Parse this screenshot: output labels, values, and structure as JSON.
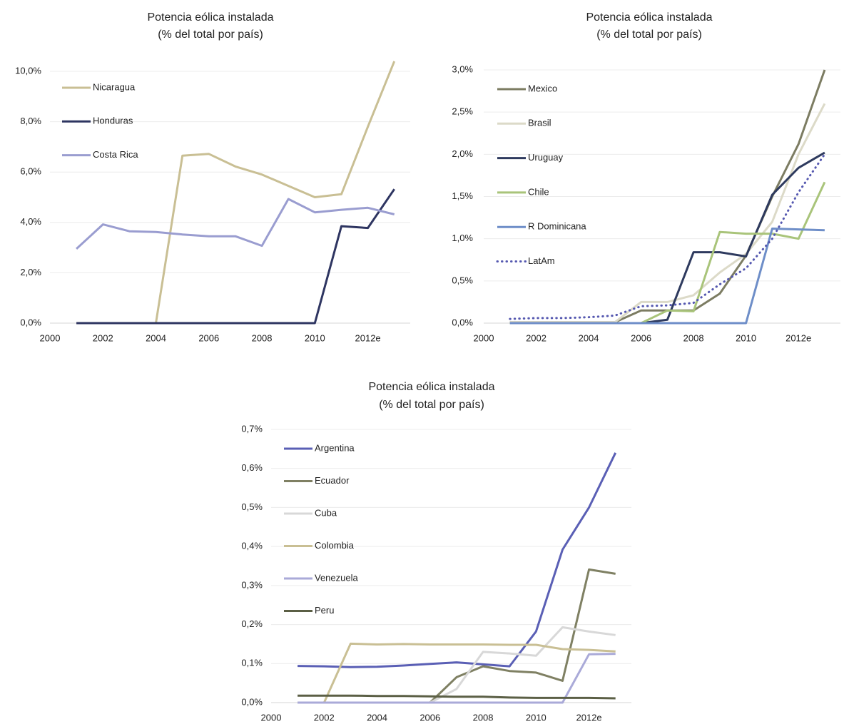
{
  "chart_data": [
    {
      "type": "line",
      "title": "Potencia eólica instalada",
      "subtitle": "(% del total por país)",
      "x": [
        2001,
        2002,
        2003,
        2004,
        2005,
        2006,
        2007,
        2008,
        2009,
        2010,
        2011,
        2012,
        2013
      ],
      "xticks": [
        {
          "x": 2000,
          "label": "2000"
        },
        {
          "x": 2002,
          "label": "2002"
        },
        {
          "x": 2004,
          "label": "2004"
        },
        {
          "x": 2006,
          "label": "2006"
        },
        {
          "x": 2008,
          "label": "2008"
        },
        {
          "x": 2010,
          "label": "2010"
        },
        {
          "x": 2012,
          "label": "2012e"
        }
      ],
      "xlim": [
        2000,
        2013.6
      ],
      "ylim": [
        0,
        10
      ],
      "yticks": [
        {
          "v": 0,
          "label": "0,0%"
        },
        {
          "v": 2,
          "label": "2,0%"
        },
        {
          "v": 4,
          "label": "4,0%"
        },
        {
          "v": 6,
          "label": "6,0%"
        },
        {
          "v": 8,
          "label": "8,0%"
        },
        {
          "v": 10,
          "label": "10,0%"
        }
      ],
      "grid": true,
      "legend_position": "top-left",
      "series": [
        {
          "name": "Nicaragua",
          "color": "#c9bf94",
          "dash": false,
          "values": [
            0,
            0,
            0,
            0,
            6.65,
            6.72,
            6.22,
            5.9,
            5.45,
            5.0,
            5.12,
            7.8,
            10.4
          ]
        },
        {
          "name": "Honduras",
          "color": "#2e3561",
          "dash": false,
          "values": [
            0,
            0,
            0,
            0,
            0,
            0,
            0,
            0,
            0,
            0,
            3.85,
            3.78,
            5.32
          ]
        },
        {
          "name": "Costa Rica",
          "color": "#9a9dd0",
          "dash": false,
          "values": [
            2.95,
            3.92,
            3.65,
            3.62,
            3.52,
            3.45,
            3.45,
            3.07,
            4.93,
            4.4,
            4.5,
            4.58,
            4.32
          ]
        }
      ]
    },
    {
      "type": "line",
      "title": "Potencia eólica instalada",
      "subtitle": "(% del total por país)",
      "x": [
        2001,
        2002,
        2003,
        2004,
        2005,
        2006,
        2007,
        2008,
        2009,
        2010,
        2011,
        2012,
        2013
      ],
      "xticks": [
        {
          "x": 2000,
          "label": "2000"
        },
        {
          "x": 2002,
          "label": "2002"
        },
        {
          "x": 2004,
          "label": "2004"
        },
        {
          "x": 2006,
          "label": "2006"
        },
        {
          "x": 2008,
          "label": "2008"
        },
        {
          "x": 2010,
          "label": "2010"
        },
        {
          "x": 2012,
          "label": "2012e"
        }
      ],
      "xlim": [
        2000,
        2013.6
      ],
      "ylim": [
        0,
        3
      ],
      "yticks": [
        {
          "v": 0,
          "label": "0,0%"
        },
        {
          "v": 0.5,
          "label": "0,5%"
        },
        {
          "v": 1,
          "label": "1,0%"
        },
        {
          "v": 1.5,
          "label": "1,5%"
        },
        {
          "v": 2,
          "label": "2,0%"
        },
        {
          "v": 2.5,
          "label": "2,5%"
        },
        {
          "v": 3,
          "label": "3,0%"
        }
      ],
      "grid": true,
      "legend_position": "top-left",
      "series": [
        {
          "name": "Mexico",
          "color": "#7c7c62",
          "dash": false,
          "values": [
            0.01,
            0.01,
            0.01,
            0.01,
            0.01,
            0.15,
            0.15,
            0.15,
            0.35,
            0.8,
            1.5,
            2.12,
            3.0
          ]
        },
        {
          "name": "Brasil",
          "color": "#dcdac8",
          "dash": false,
          "values": [
            0.01,
            0.01,
            0.01,
            0.01,
            0.01,
            0.25,
            0.25,
            0.33,
            0.6,
            0.82,
            1.2,
            2.0,
            2.6
          ]
        },
        {
          "name": "Uruguay",
          "color": "#2e3a5e",
          "dash": false,
          "values": [
            0,
            0,
            0,
            0,
            0,
            0,
            0.04,
            0.84,
            0.84,
            0.79,
            1.52,
            1.84,
            2.02
          ]
        },
        {
          "name": "Chile",
          "color": "#a9c47a",
          "dash": false,
          "values": [
            0,
            0,
            0,
            0,
            0,
            0,
            0.15,
            0.14,
            1.08,
            1.06,
            1.06,
            1.0,
            1.67
          ]
        },
        {
          "name": "R Dominicana",
          "color": "#6e8ec8",
          "dash": false,
          "values": [
            0,
            0,
            0,
            0,
            0,
            0,
            0,
            0,
            0,
            0,
            1.12,
            1.11,
            1.1
          ]
        },
        {
          "name": "LatAm",
          "color": "#5558b0",
          "dash": true,
          "values": [
            0.05,
            0.06,
            0.06,
            0.07,
            0.09,
            0.2,
            0.21,
            0.24,
            0.46,
            0.65,
            1.0,
            1.55,
            2.0
          ]
        }
      ]
    },
    {
      "type": "line",
      "title": "Potencia eólica instalada",
      "subtitle": "(% del total por país)",
      "x": [
        2001,
        2002,
        2003,
        2004,
        2005,
        2006,
        2007,
        2008,
        2009,
        2010,
        2011,
        2012,
        2013
      ],
      "xticks": [
        {
          "x": 2000,
          "label": "2000"
        },
        {
          "x": 2002,
          "label": "2002"
        },
        {
          "x": 2004,
          "label": "2004"
        },
        {
          "x": 2006,
          "label": "2006"
        },
        {
          "x": 2008,
          "label": "2008"
        },
        {
          "x": 2010,
          "label": "2010"
        },
        {
          "x": 2012,
          "label": "2012e"
        }
      ],
      "xlim": [
        2000,
        2013.6
      ],
      "ylim": [
        0,
        0.7
      ],
      "yticks": [
        {
          "v": 0,
          "label": "0,0%"
        },
        {
          "v": 0.1,
          "label": "0,1%"
        },
        {
          "v": 0.2,
          "label": "0,2%"
        },
        {
          "v": 0.3,
          "label": "0,3%"
        },
        {
          "v": 0.4,
          "label": "0,4%"
        },
        {
          "v": 0.5,
          "label": "0,5%"
        },
        {
          "v": 0.6,
          "label": "0,6%"
        },
        {
          "v": 0.7,
          "label": "0,7%"
        }
      ],
      "grid": true,
      "legend_position": "top-left",
      "series": [
        {
          "name": "Argentina",
          "color": "#5a5fb5",
          "dash": false,
          "values": [
            0.094,
            0.093,
            0.091,
            0.092,
            0.095,
            0.099,
            0.103,
            0.098,
            0.093,
            0.182,
            0.392,
            0.5,
            0.64
          ]
        },
        {
          "name": "Ecuador",
          "color": "#7f8063",
          "dash": false,
          "values": [
            0,
            0,
            0,
            0,
            0,
            0,
            0.065,
            0.093,
            0.081,
            0.077,
            0.056,
            0.341,
            0.33
          ]
        },
        {
          "name": "Cuba",
          "color": "#d8d8d8",
          "dash": false,
          "values": [
            0,
            0,
            0,
            0,
            0,
            0,
            0.035,
            0.13,
            0.126,
            0.12,
            0.193,
            0.182,
            0.173
          ]
        },
        {
          "name": "Colombia",
          "color": "#c9bf94",
          "dash": false,
          "values": [
            0,
            0,
            0.151,
            0.149,
            0.15,
            0.149,
            0.149,
            0.149,
            0.148,
            0.148,
            0.137,
            0.135,
            0.131
          ]
        },
        {
          "name": "Venezuela",
          "color": "#aaaad8",
          "dash": false,
          "values": [
            0,
            0,
            0,
            0,
            0,
            0,
            0,
            0,
            0,
            0,
            0,
            0.124,
            0.125
          ]
        },
        {
          "name": "Peru",
          "color": "#5b5f45",
          "dash": false,
          "values": [
            0.018,
            0.018,
            0.018,
            0.017,
            0.017,
            0.016,
            0.015,
            0.015,
            0.013,
            0.012,
            0.012,
            0.012,
            0.011
          ]
        }
      ]
    }
  ]
}
